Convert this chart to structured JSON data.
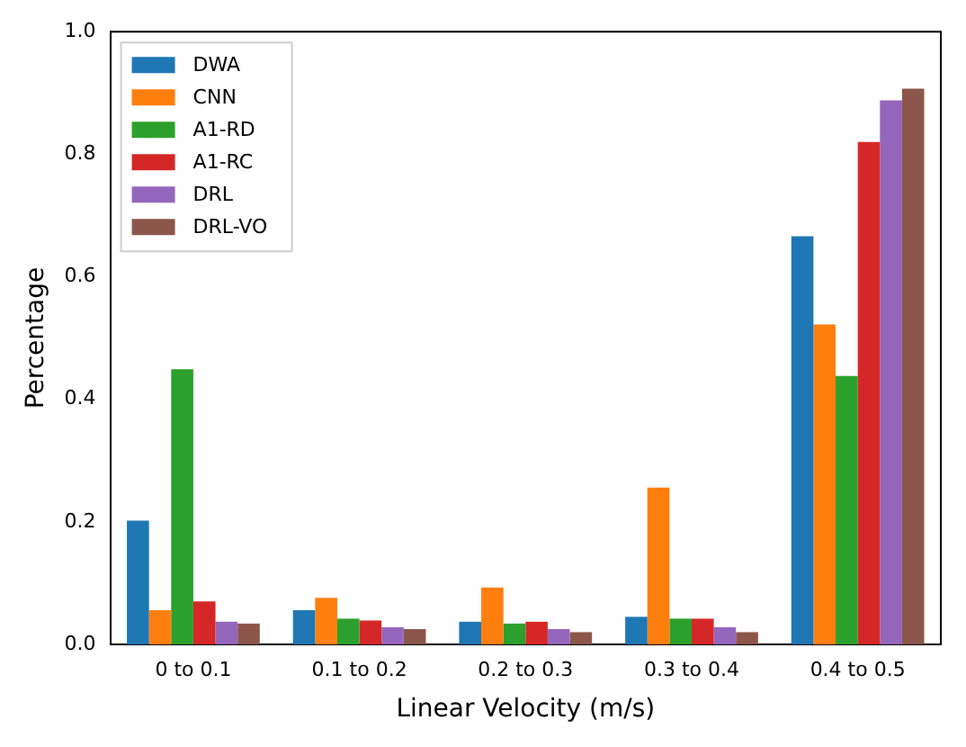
{
  "chart_data": {
    "type": "bar",
    "xlabel": "Linear Velocity (m/s)",
    "ylabel": "Percentage",
    "categories": [
      "0 to 0.1",
      "0.1 to 0.2",
      "0.2 to 0.3",
      "0.3 to 0.4",
      "0.4 to 0.5"
    ],
    "series": [
      {
        "name": "DWA",
        "color": "#1f77b4",
        "values": [
          0.202,
          0.056,
          0.037,
          0.045,
          0.666
        ]
      },
      {
        "name": "CNN",
        "color": "#ff7f0e",
        "values": [
          0.056,
          0.076,
          0.093,
          0.256,
          0.522
        ]
      },
      {
        "name": "A1-RD",
        "color": "#2ca02c",
        "values": [
          0.449,
          0.042,
          0.034,
          0.042,
          0.438
        ]
      },
      {
        "name": "A1-RC",
        "color": "#d62728",
        "values": [
          0.07,
          0.039,
          0.037,
          0.042,
          0.82
        ]
      },
      {
        "name": "DRL",
        "color": "#9467bd",
        "values": [
          0.037,
          0.028,
          0.025,
          0.028,
          0.888
        ]
      },
      {
        "name": "DRL-VO",
        "color": "#8c564b",
        "values": [
          0.034,
          0.025,
          0.02,
          0.02,
          0.907
        ]
      }
    ],
    "ylim": [
      0,
      1
    ],
    "yticks": [
      {
        "value": 0,
        "label": "0.0"
      },
      0.2,
      0.4,
      0.6,
      0.8,
      {
        "value": 1,
        "label": "1.0"
      }
    ],
    "grid": false,
    "legend": "top left"
  }
}
